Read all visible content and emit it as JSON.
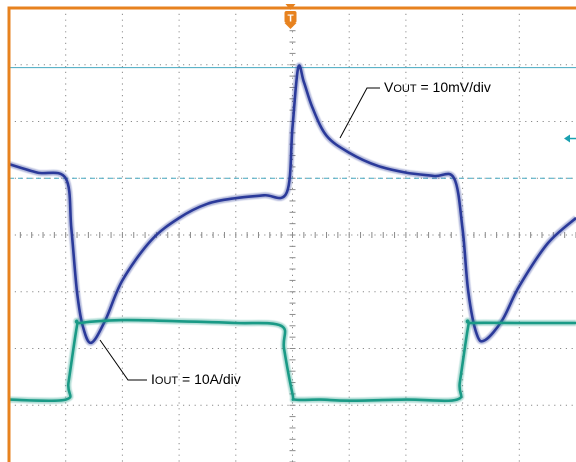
{
  "chart_data": {
    "type": "line",
    "title": "",
    "xlabel": "",
    "ylabel": "",
    "xlim": [
      0,
      10
    ],
    "ylim": [
      -4,
      4
    ],
    "grid": true,
    "annotations": [
      {
        "prefix": "V",
        "subscript": "OUT",
        "suffix": " = 10mV/div",
        "series": "vout"
      },
      {
        "prefix": "I",
        "subscript": "OUT",
        "suffix": " = 10A/div",
        "series": "iout"
      }
    ],
    "trigger_marker": "T",
    "series": [
      {
        "key": "vout",
        "color": "#2b3a9a",
        "x": [
          0,
          0.5,
          1.0,
          1.1,
          1.2,
          1.3,
          1.45,
          1.7,
          2.0,
          2.5,
          3.0,
          3.5,
          4.0,
          4.5,
          4.9,
          5.0,
          5.1,
          5.2,
          5.35,
          5.6,
          6.0,
          6.5,
          7.0,
          7.5,
          7.85,
          8.0,
          8.1,
          8.25,
          8.4,
          8.7,
          9.0,
          9.5,
          10.0
        ],
        "y": [
          1.25,
          1.1,
          1.0,
          0.1,
          -1.0,
          -1.6,
          -1.9,
          -1.5,
          -0.8,
          -0.1,
          0.3,
          0.55,
          0.65,
          0.7,
          0.75,
          1.9,
          2.95,
          2.7,
          2.25,
          1.75,
          1.45,
          1.22,
          1.1,
          1.04,
          1.0,
          0.1,
          -1.0,
          -1.75,
          -1.85,
          -1.5,
          -0.9,
          -0.15,
          0.3
        ]
      },
      {
        "key": "iout",
        "color": "#1a9a86",
        "x": [
          0,
          1.0,
          1.05,
          1.2,
          1.25,
          2.0,
          3.0,
          4.0,
          4.8,
          4.85,
          5.0,
          5.05,
          5.5,
          6.0,
          7.0,
          7.9,
          7.95,
          8.1,
          8.15,
          9.0,
          10.0
        ],
        "y": [
          -2.9,
          -2.9,
          -2.6,
          -1.6,
          -1.55,
          -1.5,
          -1.52,
          -1.55,
          -1.6,
          -2.0,
          -2.8,
          -2.9,
          -2.9,
          -2.92,
          -2.9,
          -2.9,
          -2.6,
          -1.6,
          -1.55,
          -1.55,
          -1.55
        ]
      }
    ],
    "reference_levels": [
      {
        "y": 2.95,
        "color": "#46a8c0",
        "style": "solid"
      },
      {
        "y": 1.0,
        "color": "#46a8c0",
        "style": "dashed"
      }
    ],
    "channel_marker": {
      "y": 1.7,
      "color": "#1aa0b0"
    }
  },
  "colors": {
    "frame": "#e7821f",
    "grid_dots": "#8a8a8a",
    "trigger": "#e7821f"
  }
}
